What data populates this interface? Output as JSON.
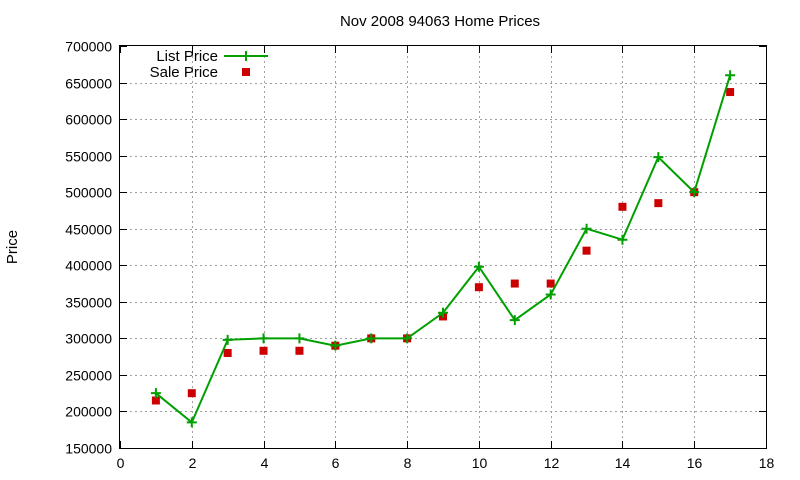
{
  "chart_data": {
    "type": "line",
    "title": "Nov 2008 94063 Home Prices",
    "xlabel": "",
    "ylabel": "Price",
    "xlim": [
      0,
      18
    ],
    "ylim": [
      150000,
      700000
    ],
    "xticks": [
      0,
      2,
      4,
      6,
      8,
      10,
      12,
      14,
      16,
      18
    ],
    "yticks": [
      150000,
      200000,
      250000,
      300000,
      350000,
      400000,
      450000,
      500000,
      550000,
      600000,
      650000,
      700000
    ],
    "grid": true,
    "legend": "top-left",
    "x": [
      1,
      2,
      3,
      4,
      5,
      6,
      7,
      8,
      9,
      10,
      11,
      12,
      13,
      14,
      15,
      16,
      17
    ],
    "series": [
      {
        "name": "List Price",
        "style": "line-with-plus",
        "color": "#00a000",
        "values": [
          225000,
          185000,
          298000,
          300000,
          300000,
          290000,
          300000,
          300000,
          335000,
          398000,
          325000,
          360000,
          450000,
          435000,
          548000,
          500000,
          660000
        ]
      },
      {
        "name": "Sale Price",
        "style": "square",
        "color": "#cc0000",
        "values": [
          215000,
          225000,
          280000,
          283000,
          283000,
          290000,
          300000,
          300000,
          330000,
          370000,
          375000,
          375000,
          420000,
          480000,
          485000,
          500000,
          637000
        ]
      }
    ]
  }
}
